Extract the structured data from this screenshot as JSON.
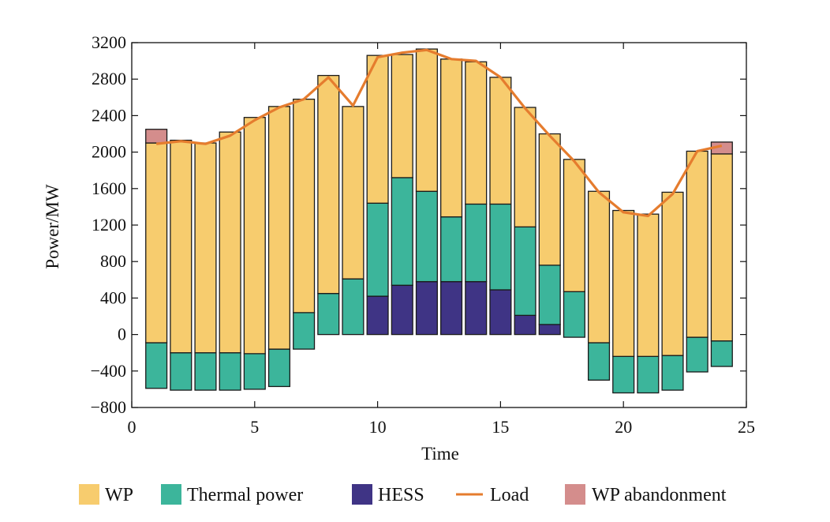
{
  "chart_data": {
    "type": "bar",
    "stacked": true,
    "xlabel": "Time",
    "ylabel": "Power/MW",
    "xlim": [
      0,
      25
    ],
    "ylim": [
      -800,
      3200
    ],
    "xticks": [
      0,
      5,
      10,
      15,
      20,
      25
    ],
    "yticks": [
      -800,
      -400,
      0,
      400,
      800,
      1200,
      1600,
      2000,
      2400,
      2800,
      3200
    ],
    "ytick_labels": [
      "−800",
      "−400",
      "0",
      "400",
      "800",
      "1200",
      "1600",
      "2000",
      "2400",
      "2800",
      "3200"
    ],
    "grid": false,
    "legend_position": "bottom",
    "x": [
      1,
      2,
      3,
      4,
      5,
      6,
      7,
      8,
      9,
      10,
      11,
      12,
      13,
      14,
      15,
      16,
      17,
      18,
      19,
      20,
      21,
      22,
      23,
      24
    ],
    "series": [
      {
        "name": "WP",
        "color": "#F7CC6E",
        "values": [
          2190,
          2330,
          2300,
          2420,
          2590,
          2660,
          2340,
          2390,
          1890,
          1620,
          1350,
          1560,
          1730,
          1560,
          1390,
          1310,
          1440,
          1450,
          1660,
          1600,
          1560,
          1790,
          2040,
          2050
        ]
      },
      {
        "name": "Thermal power",
        "color": "#3CB59B",
        "values": [
          -500,
          -410,
          -410,
          -410,
          -390,
          -410,
          400,
          450,
          610,
          1020,
          1180,
          990,
          710,
          850,
          940,
          970,
          650,
          500,
          -410,
          -400,
          -400,
          -380,
          -380,
          -280
        ]
      },
      {
        "name": "HESS",
        "color": "#3F3485",
        "values": [
          0,
          0,
          0,
          0,
          0,
          0,
          0,
          0,
          0,
          420,
          540,
          580,
          580,
          580,
          490,
          210,
          110,
          0,
          0,
          0,
          0,
          0,
          0,
          0
        ]
      },
      {
        "name": "WP abandonment",
        "color": "#D48D8C",
        "values": [
          150,
          0,
          0,
          0,
          0,
          0,
          0,
          0,
          0,
          0,
          0,
          0,
          0,
          0,
          0,
          0,
          0,
          0,
          0,
          0,
          0,
          0,
          0,
          130
        ]
      }
    ],
    "bar_bottoms": [
      -590,
      -610,
      -610,
      -610,
      -600,
      -570,
      -160,
      0,
      0,
      0,
      0,
      0,
      0,
      0,
      0,
      0,
      0,
      -30,
      -500,
      -640,
      -640,
      -610,
      -410,
      -350
    ],
    "load": {
      "name": "Load",
      "color": "#E57C2E",
      "values": [
        2090,
        2120,
        2090,
        2180,
        2350,
        2490,
        2580,
        2820,
        2510,
        3040,
        3090,
        3120,
        3020,
        3000,
        2820,
        2480,
        2180,
        1900,
        1560,
        1340,
        1300,
        1540,
        2010,
        2070
      ]
    }
  }
}
